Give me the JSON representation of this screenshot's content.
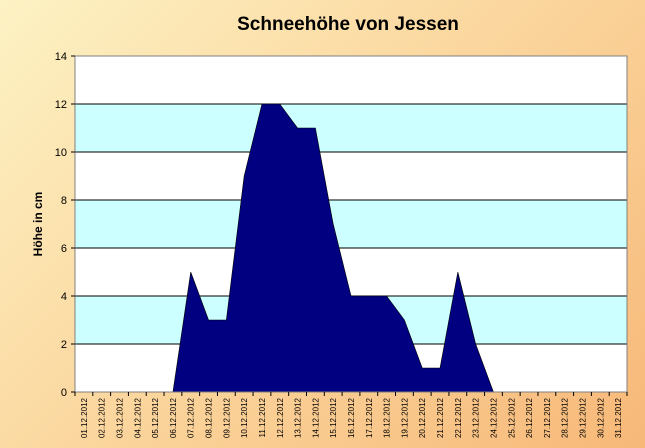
{
  "chart_data": {
    "type": "area",
    "title": "Schneehöhe von Jessen",
    "xlabel": "",
    "ylabel": "Höhe in cm",
    "ylim": [
      0,
      14
    ],
    "yticks": [
      0,
      2,
      4,
      6,
      8,
      10,
      12,
      14
    ],
    "grid": true,
    "legend": "none",
    "categories": [
      "01.12.2012",
      "02.12.2012",
      "03.12.2012",
      "04.12.2012",
      "05.12.2012",
      "06.12.2012",
      "07.12.2012",
      "08.12.2012",
      "09.12.2012",
      "10.12.2012",
      "11.12.2012",
      "12.12.2012",
      "13.12.2012",
      "14.12.2012",
      "15.12.2012",
      "16.12.2012",
      "17.12.2012",
      "18.12.2012",
      "19.12.2012",
      "20.12.2012",
      "21.12.2012",
      "22.12.2012",
      "23.12.2012",
      "24.12.2012",
      "25.12.2012",
      "26.12.2012",
      "27.12.2012",
      "28.12.2012",
      "29.12.2012",
      "30.12.2012",
      "31.12.2012"
    ],
    "values": [
      0,
      0,
      0,
      0,
      0,
      0,
      5,
      3,
      3,
      9,
      12,
      12,
      11,
      11,
      7,
      4,
      4,
      4,
      3,
      1,
      1,
      5,
      2,
      0,
      0,
      0,
      0,
      0,
      0,
      0,
      0
    ],
    "colors": {
      "area_fill": "#000080",
      "plot_band_light": "#ccffff",
      "plot_band_white": "#ffffff",
      "gridline": "#000000"
    }
  }
}
